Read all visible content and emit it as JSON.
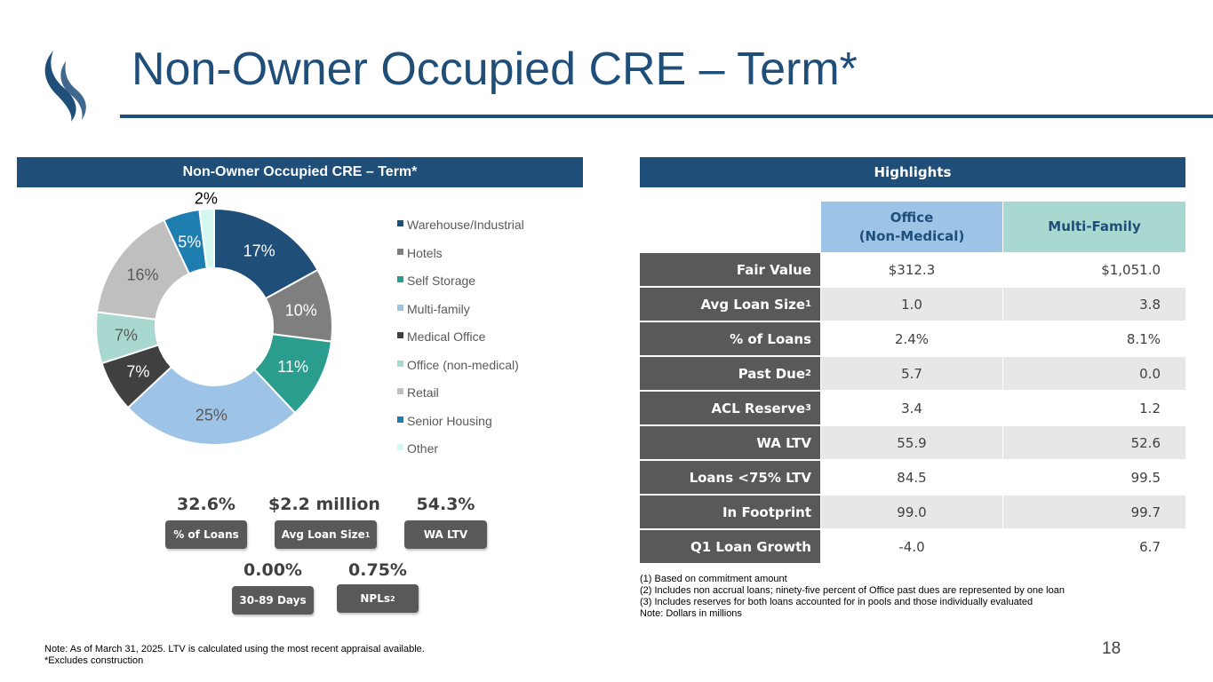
{
  "header": {
    "title": "Non-Owner Occupied CRE – Term*"
  },
  "left_panel": {
    "title": "Non-Owner Occupied CRE – Term*"
  },
  "chart_data": {
    "type": "pie",
    "variant": "donut",
    "title": "Non-Owner Occupied CRE – Term*",
    "legend_position": "right",
    "categories": [
      "Warehouse/Industrial",
      "Hotels",
      "Self Storage",
      "Multi-family",
      "Medical Office",
      "Office (non-medical)",
      "Retail",
      "Senior Housing",
      "Other"
    ],
    "values": [
      17,
      10,
      11,
      25,
      7,
      7,
      16,
      5,
      2
    ],
    "labels": [
      "17%",
      "10%",
      "11%",
      "25%",
      "7%",
      "7%",
      "16%",
      "5%",
      "2%"
    ],
    "colors": [
      "#1f4e79",
      "#7f7f7f",
      "#2a9d8f",
      "#9dc3e6",
      "#404040",
      "#a9d8d0",
      "#bfbfbf",
      "#1f7eb0",
      "#d4f7ef"
    ],
    "label_colors": [
      "#ffffff",
      "#ffffff",
      "#ffffff",
      "#595959",
      "#ffffff",
      "#595959",
      "#595959",
      "#ffffff",
      "#000000"
    ]
  },
  "stats": {
    "pct_loans": {
      "value": "32.6%",
      "label": "% of Loans"
    },
    "avg_loan": {
      "value": "$2.2 million",
      "label": "Avg Loan Size",
      "sup": "1"
    },
    "wa_ltv": {
      "value": "54.3%",
      "label": "WA LTV"
    },
    "days_30_89": {
      "value": "0.00%",
      "label": "30-89 Days"
    },
    "npls": {
      "value": "0.75%",
      "label": "NPLs",
      "sup": "2"
    }
  },
  "highlights": {
    "title": "Highlights",
    "col_office_line1": "Office",
    "col_office_line2": "(Non-Medical)",
    "col_multifamily": "Multi-Family",
    "rows": [
      {
        "label": "Fair Value",
        "sup": "",
        "office": "$312.3",
        "multifamily": "$1,051.0"
      },
      {
        "label": "Avg Loan Size",
        "sup": "1",
        "office": "1.0",
        "multifamily": "3.8"
      },
      {
        "label": "% of Loans",
        "sup": "",
        "office": "2.4%",
        "multifamily": "8.1%"
      },
      {
        "label": "Past Due",
        "sup": "2",
        "office": "5.7",
        "multifamily": "0.0"
      },
      {
        "label": "ACL Reserve",
        "sup": "3",
        "office": "3.4",
        "multifamily": "1.2"
      },
      {
        "label": "WA LTV",
        "sup": "",
        "office": "55.9",
        "multifamily": "52.6"
      },
      {
        "label": "Loans <75% LTV",
        "sup": "",
        "office": "84.5",
        "multifamily": "99.5"
      },
      {
        "label": "In Footprint",
        "sup": "",
        "office": "99.0",
        "multifamily": "99.7"
      },
      {
        "label": "Q1 Loan Growth",
        "sup": "",
        "office": "-4.0",
        "multifamily": "6.7"
      }
    ]
  },
  "footnotes": [
    "(1) Based on commitment amount",
    "(2) Includes non accrual loans; ninety-five percent of Office past dues are represented by one loan",
    "(3) Includes reserves for both loans accounted for in pools and those individually evaluated",
    "Note: Dollars in millions"
  ],
  "notes": [
    "Note: As of March 31, 2025. LTV is calculated using the most recent appraisal available.",
    "*Excludes construction"
  ],
  "page_number": "18"
}
